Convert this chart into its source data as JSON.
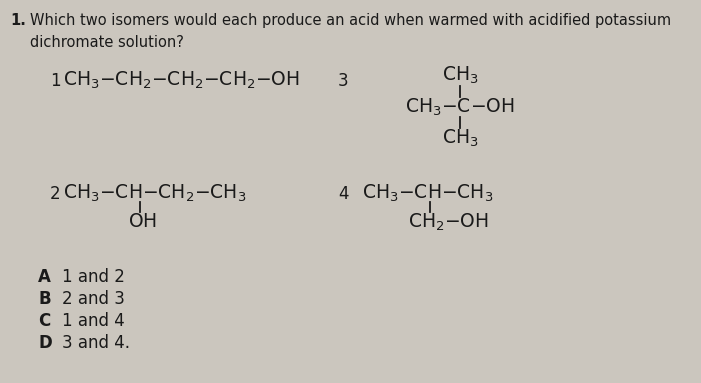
{
  "background_color": "#cbc6be",
  "text_color": "#1a1a1a",
  "question_num": "1.",
  "question_text": "Which two isomers would each produce an acid when warmed with acidified potassium\ndichromate solution?",
  "fs_question": 10.5,
  "fs_label": 12,
  "fs_struct": 13.5,
  "fs_options": 12,
  "struct1_label": "1",
  "struct1": "$\\mathrm{CH_3{-}CH_2{-}CH_2{-}CH_2{-}OH}$",
  "struct2_label": "2",
  "struct2_main": "$\\mathrm{CH_3{-}CH{-}CH_2{-}CH_3}$",
  "struct2_sub": "$\\mathrm{OH}$",
  "struct3_label": "3",
  "struct3_top": "$\\mathrm{CH_3}$",
  "struct3_mid": "$\\mathrm{CH_3{-}C{-}OH}$",
  "struct3_bot": "$\\mathrm{CH_3}$",
  "struct4_label": "4",
  "struct4_main": "$\\mathrm{CH_3{-}CH{-}CH_3}$",
  "struct4_sub": "$\\mathrm{CH_2{-}OH}$",
  "opt_letters": [
    "A",
    "B",
    "C",
    "D"
  ],
  "opt_texts": [
    "1 and 2",
    "2 and 3",
    "1 and 4",
    "3 and 4."
  ]
}
